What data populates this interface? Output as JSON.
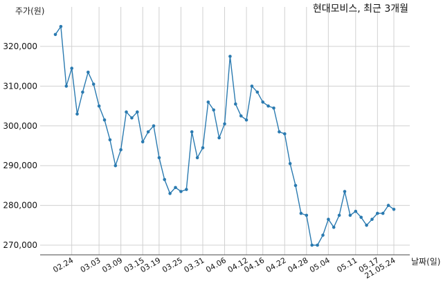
{
  "chart_data": {
    "type": "line",
    "title": "현대모비스, 최근 3개월",
    "xlabel": "날짜(일)",
    "ylabel": "주가(원)",
    "ylim": [
      267000,
      328000
    ],
    "yticks": [
      270000,
      280000,
      290000,
      300000,
      310000,
      320000
    ],
    "ytick_labels": [
      "270,000",
      "280,000",
      "290,000",
      "300,000",
      "310,000",
      "320,000"
    ],
    "xtick_labels": [
      "02.24",
      "03.03",
      "03.09",
      "03.15",
      "03.19",
      "03.25",
      "03.31",
      "04.06",
      "04.12",
      "04.16",
      "04.22",
      "04.28",
      "05.04",
      "05.11",
      "05.17",
      "21.05.24"
    ],
    "xtick_index": [
      3,
      8,
      12,
      16,
      19,
      23,
      27,
      31,
      35,
      38,
      42,
      46,
      50,
      55,
      59,
      62
    ],
    "grid": true,
    "color": "#2a7ab0",
    "series": [
      {
        "values": [
          323000,
          325000,
          310000,
          314500,
          303000,
          308500,
          313500,
          310500,
          305000,
          301500,
          296500,
          290000,
          294000,
          303500,
          302000,
          303500,
          296000,
          298500,
          300000,
          292000,
          286500,
          283000,
          284500,
          283500,
          284000,
          298500,
          292000,
          294500,
          306000,
          304000,
          297000,
          300500,
          317500,
          305500,
          302500,
          301500,
          310000,
          308500,
          306000,
          305000,
          304500,
          298500,
          298000,
          290500,
          285000,
          278000,
          277500,
          270000,
          270000,
          272500,
          276500,
          274500,
          277500,
          283500,
          277500,
          278500,
          277000,
          275000,
          276500,
          278000,
          278000,
          280000,
          279000
        ]
      }
    ]
  }
}
